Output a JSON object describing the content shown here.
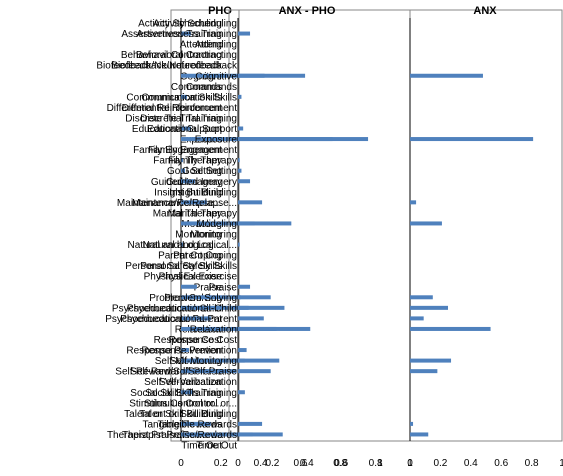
{
  "chart_data": [
    {
      "type": "bar",
      "orientation": "horizontal",
      "title": "PHO",
      "xlim": [
        0,
        1
      ],
      "x_ticks": [
        "0",
        "0.2",
        "0.4",
        "0.6",
        "0.8",
        "1"
      ],
      "grid": false,
      "categories": [
        "Activity Scheduling",
        "Assertiveness Training",
        "Attending",
        "Behavioral Contracting",
        "Biofeedback/Neurofeedback",
        "Cognitive",
        "Commands",
        "Communication Skills",
        "Differential Reinforcement",
        "Discrete Trial Training",
        "Educational Support",
        "Exposure",
        "Family Engagement",
        "Family Therapy",
        "Goal Setting",
        "Guided Imagery",
        "Insight Building",
        "Maintenance/Relapse...",
        "Marital Therapy",
        "Modeling",
        "Monitoring",
        "Natural and Logical...",
        "Parent Coping",
        "Personal Safety Skills",
        "Physical Exercise",
        "Praise",
        "Problem Solving",
        "Psychoeducational-Child",
        "Psychoeducational-Parent",
        "Relaxation",
        "Response Cost",
        "Response Prevention",
        "Self-Monitoring",
        "Self-Reward/Self-Praise",
        "Self-Verbalization",
        "Social Skills Training",
        "Stimulus Control or...",
        "Talent or Skill Building",
        "Tangible Rewards",
        "Therapist Praise/Rewards",
        "Time Out"
      ],
      "values": [
        0.0,
        0.05,
        0.0,
        0.0,
        0.0,
        0.42,
        0.0,
        0.03,
        0.0,
        0.0,
        0.05,
        0.94,
        0.0,
        0.01,
        0.02,
        0.07,
        0.0,
        0.13,
        0.0,
        0.37,
        0.0,
        0.01,
        0.0,
        0.0,
        0.0,
        0.08,
        0.3,
        0.34,
        0.15,
        0.48,
        0.0,
        0.04,
        0.32,
        0.28,
        0.0,
        0.06,
        0.0,
        0.0,
        0.15,
        0.36,
        0.0
      ]
    },
    {
      "type": "bar",
      "orientation": "horizontal",
      "title": "ANX - PHO",
      "xlim": [
        0,
        1
      ],
      "x_ticks": [
        "0",
        "0.2",
        "0.4",
        "0.6",
        "0.8",
        "1"
      ],
      "grid": false,
      "categories": [
        "Activity Scheduling",
        "Assertiveness Training",
        "Attending",
        "Behavioral Contracting",
        "Biofeedback/Neurofeedback",
        "Cognitive",
        "Commands",
        "Communication Skills",
        "Differential Reinforcement",
        "Discrete Trial Training",
        "Educational Support",
        "Exposure",
        "Family Engagement",
        "Family Therapy",
        "Goal Setting",
        "Guided Imagery",
        "Insight Building",
        "Maintenance/Relapse...",
        "Marital Therapy",
        "Modeling",
        "Monitoring",
        "Natural and Logical...",
        "Parent Coping",
        "Personal Safety Skills",
        "Physical Exercise",
        "Praise",
        "Problem Solving",
        "Psychoeducational-Child",
        "Psychoeducational-Parent",
        "Relaxation",
        "Response Cost",
        "Response Prevention",
        "Self-Monitoring",
        "Self-Reward/Self-Praise",
        "Self-Verbalization",
        "Social Skills Training",
        "Stimulus Control or...",
        "Talent or Skill Building",
        "Tangible Rewards",
        "Therapist Praise/Rewards",
        "Time Out"
      ],
      "values": [
        0.0,
        0.07,
        0.0,
        0.0,
        0.0,
        0.39,
        0.0,
        0.02,
        0.0,
        0.0,
        0.03,
        0.55,
        0.0,
        0.01,
        0.02,
        0.07,
        0.0,
        0.14,
        0.0,
        0.31,
        0.0,
        0.01,
        0.0,
        0.0,
        0.0,
        0.07,
        0.19,
        0.27,
        0.15,
        0.42,
        0.0,
        0.05,
        0.24,
        0.19,
        0.0,
        0.04,
        0.0,
        0.0,
        0.14,
        0.26,
        0.0
      ]
    },
    {
      "type": "bar",
      "orientation": "horizontal",
      "title": "ANX",
      "xlim": [
        0,
        1
      ],
      "x_ticks": [
        "0",
        "0.2",
        "0.4",
        "0.6",
        "0.8",
        "1"
      ],
      "grid": false,
      "categories": [
        "Activity Scheduling",
        "Assertiveness Training",
        "Attending",
        "Behavioral Contracting",
        "Biofeedback/Neurofeedback",
        "Cognitive",
        "Commands",
        "Communication Skills",
        "Differential Reinforcement",
        "Discrete Trial Training",
        "Educational Support",
        "Exposure",
        "Family Engagement",
        "Family Therapy",
        "Goal Setting",
        "Guided Imagery",
        "Insight Building",
        "Maintenance/Relapse...",
        "Marital Therapy",
        "Modeling",
        "Monitoring",
        "Natural and Logical...",
        "Parent Coping",
        "Personal Safety Skills",
        "Physical Exercise",
        "Praise",
        "Problem Solving",
        "Psychoeducational-Child",
        "Psychoeducational-Parent",
        "Relaxation",
        "Response Cost",
        "Response Prevention",
        "Self-Monitoring",
        "Self-Reward/Self-Praise",
        "Self-Verbalization",
        "Social Skills Training",
        "Stimulus Control or...",
        "Talent or Skill Building",
        "Tangible Rewards",
        "Therapist Praise/Rewards",
        "Time Out"
      ],
      "values": [
        0.0,
        0.0,
        0.0,
        0.0,
        0.0,
        0.48,
        0.0,
        0.0,
        0.0,
        0.0,
        0.0,
        0.81,
        0.0,
        0.0,
        0.0,
        0.0,
        0.0,
        0.04,
        0.0,
        0.21,
        0.0,
        0.0,
        0.0,
        0.0,
        0.0,
        0.0,
        0.15,
        0.25,
        0.09,
        0.53,
        0.0,
        0.0,
        0.27,
        0.18,
        0.0,
        0.0,
        0.0,
        0.0,
        0.02,
        0.12,
        0.0
      ]
    }
  ],
  "colors": {
    "bar": "#4f81bd",
    "axis": "#000000",
    "frame": "#878787",
    "text": "#000000"
  }
}
